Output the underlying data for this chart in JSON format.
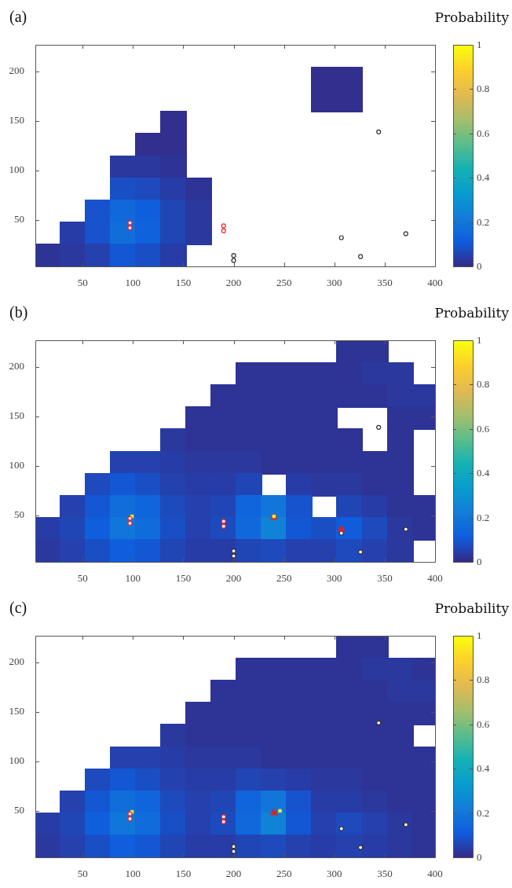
{
  "chart_data": [
    {
      "type": "scatter",
      "title": "(a)",
      "clabel": "Probability",
      "xlim": [
        3,
        400
      ],
      "xticks": [
        50,
        100,
        150,
        200,
        250,
        300,
        350,
        400
      ],
      "ylim": [
        3,
        227
      ],
      "yticks": [
        50,
        100,
        150,
        200
      ],
      "clim": [
        0,
        1
      ],
      "cticks": [
        0,
        0.2,
        0.4,
        0.6,
        0.8,
        1
      ],
      "series": [
        {
          "type": "scatter",
          "marker": "square",
          "x": [
            290,
            315,
            290,
            315,
            140,
            115,
            140,
            90,
            115,
            140,
            90,
            115,
            140,
            165,
            65,
            90,
            115,
            140,
            165,
            40,
            65,
            90,
            115,
            140,
            165,
            15,
            40,
            65,
            90,
            115,
            140
          ],
          "values": [
            193.4,
            193.4,
            171,
            171,
            148.6,
            126.2,
            126.2,
            103.8,
            103.8,
            103.8,
            81.4,
            81.4,
            81.4,
            81.4,
            59,
            59,
            59,
            59,
            59,
            36.6,
            36.6,
            36.6,
            36.6,
            36.6,
            36.6,
            14.2,
            14.2,
            14.2,
            14.2,
            14.2,
            14.2
          ],
          "cvalues": [
            0.01,
            0.01,
            0.01,
            0.01,
            0.01,
            0.01,
            0.01,
            0.03,
            0.03,
            0.02,
            0.08,
            0.07,
            0.04,
            0.02,
            0.09,
            0.15,
            0.12,
            0.06,
            0.03,
            0.04,
            0.09,
            0.17,
            0.13,
            0.06,
            0.03,
            0.02,
            0.03,
            0.05,
            0.1,
            0.08,
            0.04
          ],
          "colors": [
            "#322f8f",
            "#322f8f",
            "#322f8f",
            "#322f8f",
            "#322f8f",
            "#322f8f",
            "#322f8f",
            "#2b389e",
            "#2b389e",
            "#2e3396",
            "#1a4ec5",
            "#1d4abd",
            "#273ca6",
            "#2e3396",
            "#1653cd",
            "#1068db",
            "#0f5fdd",
            "#2045b5",
            "#2b389e",
            "#273ca6",
            "#1653cd",
            "#116dda",
            "#1062dc",
            "#2045b5",
            "#2b389e",
            "#2e3396",
            "#2b389e",
            "#2441ae",
            "#1357d4",
            "#1a4ec5",
            "#273ca6"
          ]
        },
        {
          "type": "scatter",
          "marker": "circle",
          "color": "#ff2020",
          "x": [
            97,
            97,
            190,
            190
          ],
          "values": [
            42,
            47,
            39,
            44
          ]
        },
        {
          "type": "scatter",
          "marker": "circle",
          "color": "#333333",
          "x": [
            200,
            200,
            307,
            326,
            344,
            371
          ],
          "values": [
            9,
            14,
            32,
            13,
            139,
            36
          ]
        }
      ]
    },
    {
      "type": "scatter",
      "title": "(b)",
      "clabel": "Probability",
      "xlim": [
        3,
        400
      ],
      "xticks": [
        50,
        100,
        150,
        200,
        250,
        300,
        350,
        400
      ],
      "ylim": [
        3,
        227
      ],
      "yticks": [
        50,
        100,
        150,
        200
      ],
      "clim": [
        0,
        1
      ],
      "cticks": [
        0,
        0.2,
        0.4,
        0.6,
        0.8,
        1
      ],
      "series": [
        {
          "type": "scatter",
          "marker": "square",
          "x": [
            315,
            340,
            215,
            240,
            265,
            290,
            315,
            340,
            365,
            190,
            215,
            240,
            265,
            290,
            315,
            340,
            365,
            390,
            165,
            190,
            215,
            240,
            265,
            290,
            365,
            390,
            140,
            165,
            190,
            215,
            240,
            265,
            290,
            315,
            365,
            90,
            115,
            140,
            165,
            190,
            215,
            240,
            265,
            290,
            315,
            340,
            365,
            65,
            90,
            115,
            140,
            165,
            190,
            215,
            265,
            290,
            315,
            340,
            365,
            40,
            65,
            90,
            115,
            140,
            165,
            190,
            215,
            240,
            265,
            315,
            340,
            365,
            390,
            15,
            40,
            65,
            90,
            115,
            140,
            165,
            190,
            215,
            240,
            265,
            290,
            315,
            340,
            365,
            390,
            15,
            40,
            65,
            90,
            115,
            140,
            165,
            190,
            215,
            240,
            265,
            290,
            315,
            340,
            365
          ],
          "values": [
            215.8,
            215.8,
            193.4,
            193.4,
            193.4,
            193.4,
            193.4,
            193.4,
            193.4,
            171,
            171,
            171,
            171,
            171,
            171,
            171,
            171,
            171,
            148.6,
            148.6,
            148.6,
            148.6,
            148.6,
            148.6,
            148.6,
            148.6,
            126.2,
            126.2,
            126.2,
            126.2,
            126.2,
            126.2,
            126.2,
            126.2,
            126.2,
            103.8,
            103.8,
            103.8,
            103.8,
            103.8,
            103.8,
            103.8,
            103.8,
            103.8,
            103.8,
            103.8,
            103.8,
            81.4,
            81.4,
            81.4,
            81.4,
            81.4,
            81.4,
            81.4,
            81.4,
            81.4,
            81.4,
            81.4,
            81.4,
            59,
            59,
            59,
            59,
            59,
            59,
            59,
            59,
            59,
            59,
            59,
            59,
            59,
            59,
            36.6,
            36.6,
            36.6,
            36.6,
            36.6,
            36.6,
            36.6,
            36.6,
            36.6,
            36.6,
            36.6,
            36.6,
            36.6,
            36.6,
            36.6,
            36.6,
            14.2,
            14.2,
            14.2,
            14.2,
            14.2,
            14.2,
            14.2,
            14.2,
            14.2,
            14.2,
            14.2,
            14.2,
            14.2,
            14.2,
            14.2
          ],
          "cvalues": [
            0.02,
            0.02,
            0.02,
            0.02,
            0.02,
            0.02,
            0.02,
            0.03,
            0.03,
            0.02,
            0.02,
            0.02,
            0.02,
            0.02,
            0.02,
            0.02,
            0.03,
            0.03,
            0.02,
            0.02,
            0.02,
            0.02,
            0.02,
            0.02,
            0.02,
            0.02,
            0.03,
            0.02,
            0.02,
            0.02,
            0.02,
            0.02,
            0.02,
            0.02,
            0.02,
            0.05,
            0.05,
            0.04,
            0.03,
            0.03,
            0.03,
            0.02,
            0.02,
            0.02,
            0.02,
            0.02,
            0.02,
            0.07,
            0.1,
            0.08,
            0.05,
            0.04,
            0.04,
            0.06,
            0.04,
            0.03,
            0.03,
            0.02,
            0.02,
            0.05,
            0.1,
            0.17,
            0.14,
            0.07,
            0.05,
            0.06,
            0.14,
            0.2,
            0.09,
            0.06,
            0.04,
            0.02,
            0.02,
            0.04,
            0.06,
            0.12,
            0.2,
            0.16,
            0.08,
            0.05,
            0.07,
            0.15,
            0.24,
            0.1,
            0.08,
            0.11,
            0.07,
            0.03,
            0.02,
            0.03,
            0.05,
            0.08,
            0.12,
            0.1,
            0.06,
            0.04,
            0.04,
            0.06,
            0.07,
            0.05,
            0.05,
            0.07,
            0.05,
            0.03
          ],
          "colors": [
            "#2e3396",
            "#2e3396",
            "#2e3396",
            "#2e3396",
            "#2e3396",
            "#2e3396",
            "#2e3396",
            "#2b389e",
            "#2b389e",
            "#2e3396",
            "#2e3396",
            "#2e3396",
            "#2e3396",
            "#2e3396",
            "#2e3396",
            "#2e3396",
            "#2b389e",
            "#2b389e",
            "#2e3396",
            "#2e3396",
            "#2e3396",
            "#2e3396",
            "#2e3396",
            "#2e3396",
            "#2e3396",
            "#2e3396",
            "#2b389e",
            "#2e3396",
            "#2e3396",
            "#2e3396",
            "#2e3396",
            "#2e3396",
            "#2e3396",
            "#2e3396",
            "#2e3396",
            "#2441ae",
            "#2441ae",
            "#273ca6",
            "#2b389e",
            "#2b389e",
            "#2b389e",
            "#2e3396",
            "#2e3396",
            "#2e3396",
            "#2e3396",
            "#2e3396",
            "#2e3396",
            "#1d4abd",
            "#1357d4",
            "#1a4ec5",
            "#2441ae",
            "#273ca6",
            "#273ca6",
            "#2045b5",
            "#273ca6",
            "#2b389e",
            "#2b389e",
            "#2e3396",
            "#2e3396",
            "#2441ae",
            "#1357d4",
            "#116dda",
            "#1065dc",
            "#1d4abd",
            "#2441ae",
            "#2045b5",
            "#1065dc",
            "#1176d9",
            "#1653cd",
            "#2045b5",
            "#273ca6",
            "#2e3396",
            "#2e3396",
            "#273ca6",
            "#2045b5",
            "#0f5fdd",
            "#1176d9",
            "#106bdb",
            "#1a4ec5",
            "#2441ae",
            "#1d4abd",
            "#1068db",
            "#1082d7",
            "#1357d4",
            "#1a4ec5",
            "#0f5cdc",
            "#1d4abd",
            "#2b389e",
            "#2e3396",
            "#2b389e",
            "#2441ae",
            "#1a4ec5",
            "#0f5fdd",
            "#1357d4",
            "#2045b5",
            "#273ca6",
            "#273ca6",
            "#2045b5",
            "#1d4abd",
            "#2441ae",
            "#2441ae",
            "#1d4abd",
            "#2441ae",
            "#2b389e"
          ]
        },
        {
          "type": "scatter",
          "marker": "circle",
          "color": "#ff2020",
          "x": [
            97,
            97,
            190,
            190
          ],
          "values": [
            42,
            47,
            39,
            44
          ]
        },
        {
          "type": "scatter",
          "marker": "square",
          "color": "#ffee20",
          "x": [
            99,
            240
          ],
          "values": [
            49,
            49
          ]
        },
        {
          "type": "scatter",
          "marker": "triangle",
          "color": "#e02020",
          "x": [
            240,
            307
          ],
          "values": [
            48,
            36
          ]
        },
        {
          "type": "scatter",
          "marker": "circle",
          "color": "#333333",
          "x": [
            200,
            200,
            307,
            326,
            344,
            371
          ],
          "values": [
            9,
            14,
            32,
            13,
            139,
            36
          ]
        }
      ]
    },
    {
      "type": "scatter",
      "title": "(c)",
      "clabel": "Probability",
      "xlim": [
        3,
        400
      ],
      "xticks": [
        50,
        100,
        150,
        200,
        250,
        300,
        350,
        400
      ],
      "ylim": [
        3,
        227
      ],
      "yticks": [
        50,
        100,
        150,
        200
      ],
      "clim": [
        0,
        1
      ],
      "cticks": [
        0,
        0.2,
        0.4,
        0.6,
        0.8,
        1
      ],
      "series": [
        {
          "type": "scatter",
          "marker": "square",
          "x": [
            315,
            340,
            215,
            240,
            265,
            290,
            315,
            340,
            365,
            390,
            190,
            215,
            240,
            265,
            290,
            315,
            340,
            365,
            390,
            165,
            190,
            215,
            240,
            265,
            290,
            315,
            340,
            365,
            390,
            140,
            165,
            190,
            215,
            240,
            265,
            290,
            315,
            340,
            365,
            90,
            115,
            140,
            165,
            190,
            215,
            240,
            265,
            290,
            315,
            340,
            365,
            390,
            65,
            90,
            115,
            140,
            165,
            190,
            215,
            240,
            265,
            290,
            315,
            340,
            365,
            390,
            40,
            65,
            90,
            115,
            140,
            165,
            190,
            215,
            240,
            265,
            290,
            315,
            340,
            365,
            390,
            15,
            40,
            65,
            90,
            115,
            140,
            165,
            190,
            215,
            240,
            265,
            290,
            315,
            340,
            365,
            390,
            15,
            40,
            65,
            90,
            115,
            140,
            165,
            190,
            215,
            240,
            265,
            290,
            315,
            340,
            365,
            390
          ],
          "values": [
            215.8,
            215.8,
            193.4,
            193.4,
            193.4,
            193.4,
            193.4,
            193.4,
            193.4,
            193.4,
            171,
            171,
            171,
            171,
            171,
            171,
            171,
            171,
            171,
            148.6,
            148.6,
            148.6,
            148.6,
            148.6,
            148.6,
            148.6,
            148.6,
            148.6,
            148.6,
            126.2,
            126.2,
            126.2,
            126.2,
            126.2,
            126.2,
            126.2,
            126.2,
            126.2,
            126.2,
            103.8,
            103.8,
            103.8,
            103.8,
            103.8,
            103.8,
            103.8,
            103.8,
            103.8,
            103.8,
            103.8,
            103.8,
            103.8,
            81.4,
            81.4,
            81.4,
            81.4,
            81.4,
            81.4,
            81.4,
            81.4,
            81.4,
            81.4,
            81.4,
            81.4,
            81.4,
            81.4,
            59,
            59,
            59,
            59,
            59,
            59,
            59,
            59,
            59,
            59,
            59,
            59,
            59,
            59,
            59,
            36.6,
            36.6,
            36.6,
            36.6,
            36.6,
            36.6,
            36.6,
            36.6,
            36.6,
            36.6,
            36.6,
            36.6,
            36.6,
            36.6,
            36.6,
            36.6,
            14.2,
            14.2,
            14.2,
            14.2,
            14.2,
            14.2,
            14.2,
            14.2,
            14.2,
            14.2,
            14.2,
            14.2,
            14.2,
            14.2,
            14.2,
            14.2
          ],
          "cvalues": [
            0.02,
            0.02,
            0.02,
            0.02,
            0.02,
            0.02,
            0.02,
            0.03,
            0.03,
            0.02,
            0.02,
            0.02,
            0.02,
            0.02,
            0.02,
            0.02,
            0.02,
            0.03,
            0.03,
            0.02,
            0.02,
            0.02,
            0.02,
            0.02,
            0.02,
            0.02,
            0.02,
            0.02,
            0.02,
            0.03,
            0.02,
            0.02,
            0.02,
            0.02,
            0.02,
            0.02,
            0.02,
            0.02,
            0.02,
            0.05,
            0.05,
            0.04,
            0.03,
            0.03,
            0.03,
            0.02,
            0.02,
            0.02,
            0.02,
            0.02,
            0.02,
            0.02,
            0.07,
            0.1,
            0.08,
            0.05,
            0.04,
            0.04,
            0.06,
            0.05,
            0.04,
            0.03,
            0.03,
            0.02,
            0.02,
            0.02,
            0.05,
            0.1,
            0.17,
            0.14,
            0.07,
            0.05,
            0.06,
            0.14,
            0.2,
            0.09,
            0.04,
            0.04,
            0.03,
            0.02,
            0.02,
            0.04,
            0.06,
            0.12,
            0.2,
            0.16,
            0.08,
            0.05,
            0.07,
            0.15,
            0.24,
            0.1,
            0.05,
            0.07,
            0.05,
            0.03,
            0.02,
            0.03,
            0.05,
            0.08,
            0.12,
            0.1,
            0.06,
            0.04,
            0.04,
            0.06,
            0.07,
            0.05,
            0.04,
            0.05,
            0.04,
            0.03,
            0.02
          ],
          "colors": [
            "#2e3396",
            "#2e3396",
            "#2e3396",
            "#2e3396",
            "#2e3396",
            "#2e3396",
            "#2e3396",
            "#2b389e",
            "#2b389e",
            "#2e3396",
            "#2e3396",
            "#2e3396",
            "#2e3396",
            "#2e3396",
            "#2e3396",
            "#2e3396",
            "#2e3396",
            "#2b389e",
            "#2b389e",
            "#2e3396",
            "#2e3396",
            "#2e3396",
            "#2e3396",
            "#2e3396",
            "#2e3396",
            "#2e3396",
            "#2e3396",
            "#2e3396",
            "#2e3396",
            "#2b389e",
            "#2e3396",
            "#2e3396",
            "#2e3396",
            "#2e3396",
            "#2e3396",
            "#2e3396",
            "#2e3396",
            "#2e3396",
            "#2e3396",
            "#2441ae",
            "#2441ae",
            "#273ca6",
            "#2b389e",
            "#2b389e",
            "#2b389e",
            "#2e3396",
            "#2e3396",
            "#2e3396",
            "#2e3396",
            "#2e3396",
            "#2e3396",
            "#2e3396",
            "#1d4abd",
            "#1357d4",
            "#1a4ec5",
            "#2441ae",
            "#273ca6",
            "#273ca6",
            "#2045b5",
            "#2441ae",
            "#273ca6",
            "#2b389e",
            "#2b389e",
            "#2e3396",
            "#2e3396",
            "#2e3396",
            "#2441ae",
            "#1357d4",
            "#116dda",
            "#1065dc",
            "#1d4abd",
            "#2441ae",
            "#2045b5",
            "#1065dc",
            "#1176d9",
            "#1653cd",
            "#273ca6",
            "#273ca6",
            "#2b389e",
            "#2e3396",
            "#2e3396",
            "#273ca6",
            "#2045b5",
            "#0f5fdd",
            "#1176d9",
            "#106bdb",
            "#1a4ec5",
            "#2441ae",
            "#1d4abd",
            "#1068db",
            "#1082d7",
            "#1357d4",
            "#2441ae",
            "#1d4abd",
            "#2441ae",
            "#2b389e",
            "#2e3396",
            "#2b389e",
            "#2441ae",
            "#1a4ec5",
            "#0f5fdd",
            "#1357d4",
            "#2045b5",
            "#273ca6",
            "#273ca6",
            "#2045b5",
            "#1d4abd",
            "#2441ae",
            "#273ca6",
            "#2441ae",
            "#273ca6",
            "#2b389e",
            "#2e3396"
          ]
        },
        {
          "type": "scatter",
          "marker": "circle",
          "color": "#ff2020",
          "x": [
            97,
            97,
            190,
            190
          ],
          "values": [
            42,
            47,
            39,
            44
          ]
        },
        {
          "type": "scatter",
          "marker": "square",
          "color": "#ffee20",
          "x": [
            99,
            246
          ],
          "values": [
            49,
            50
          ]
        },
        {
          "type": "scatter",
          "marker": "triangle",
          "color": "#e02020",
          "x": [
            240
          ],
          "values": [
            48
          ]
        },
        {
          "type": "scatter",
          "marker": "circle",
          "color": "#333333",
          "x": [
            200,
            200,
            307,
            326,
            344,
            371
          ],
          "values": [
            9,
            14,
            32,
            13,
            139,
            36
          ]
        }
      ]
    }
  ]
}
